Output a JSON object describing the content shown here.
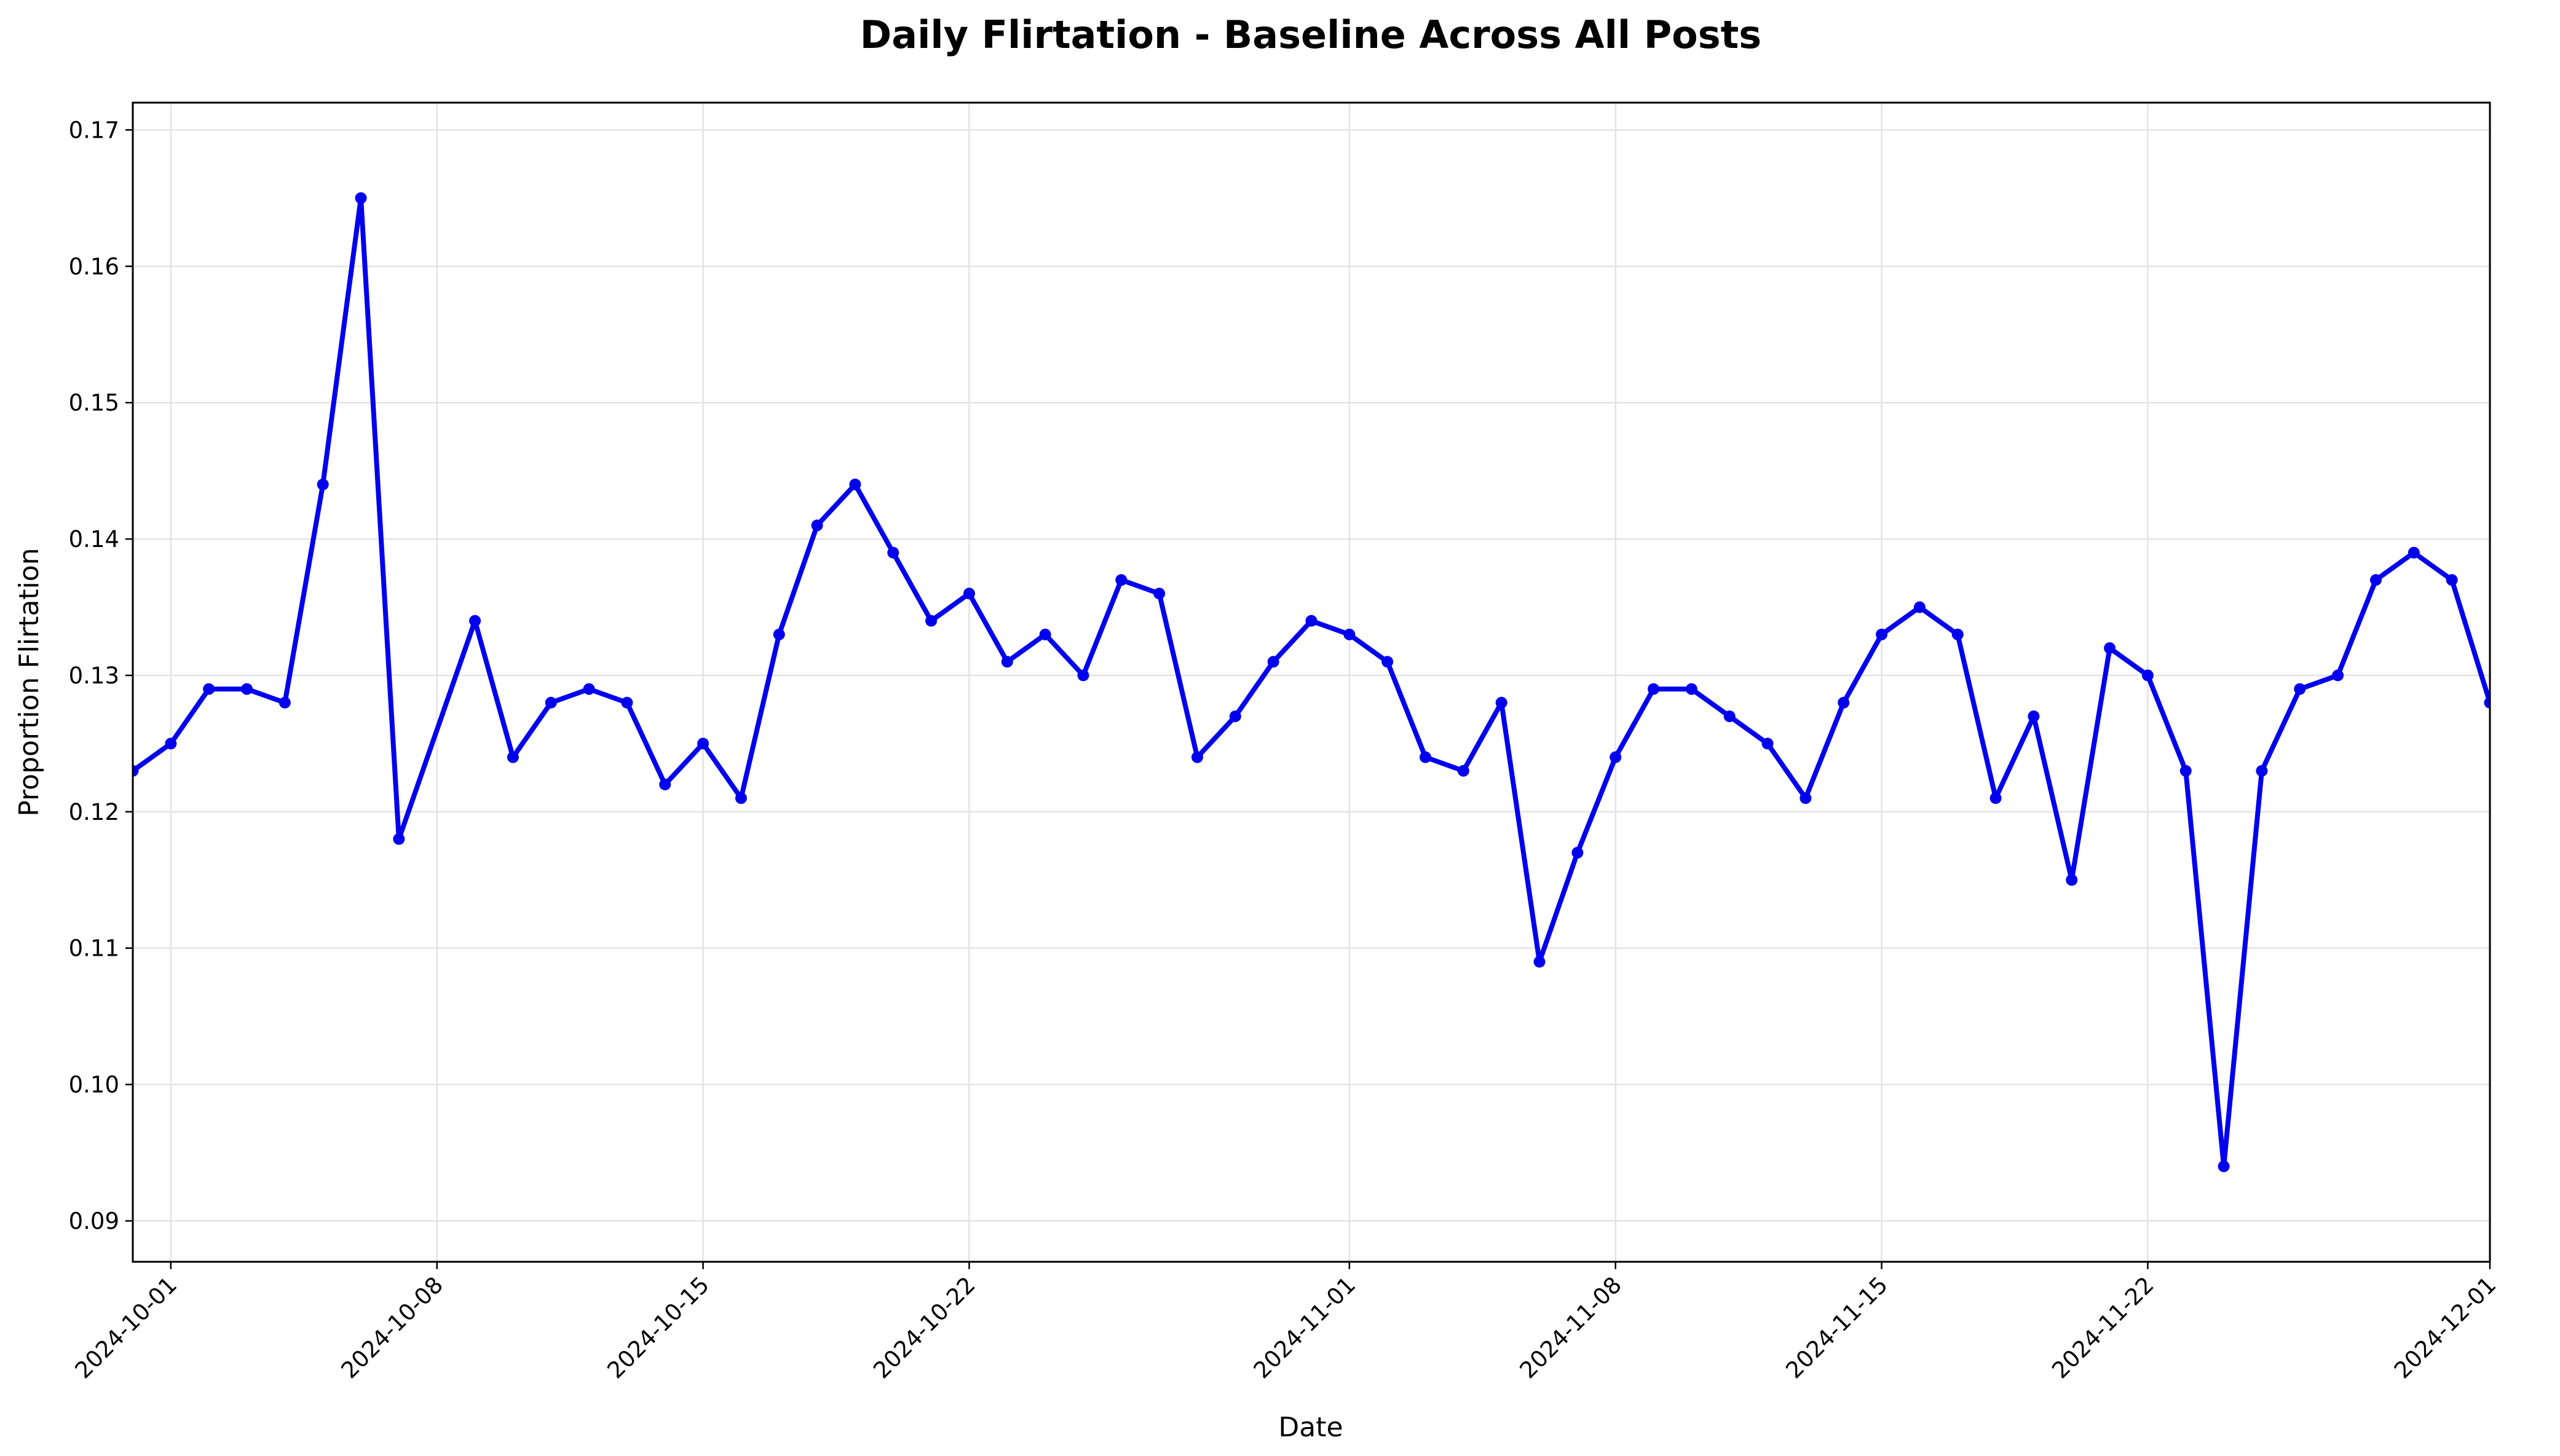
{
  "chart_data": {
    "type": "line",
    "title": "Daily Flirtation - Baseline Across All Posts",
    "xlabel": "Date",
    "ylabel": "Proportion Flirtation",
    "xlim": [
      "2024-09-30",
      "2024-12-01"
    ],
    "ylim": [
      0.087,
      0.172
    ],
    "x_ticks": [
      "2024-10-01",
      "2024-10-08",
      "2024-10-15",
      "2024-10-22",
      "2024-11-01",
      "2024-11-08",
      "2024-11-15",
      "2024-11-22",
      "2024-12-01"
    ],
    "y_ticks": [
      "0.09",
      "0.10",
      "0.11",
      "0.12",
      "0.13",
      "0.14",
      "0.15",
      "0.16",
      "0.17"
    ],
    "grid": true,
    "color": "#0000ee",
    "series": [
      {
        "points": [
          [
            "2024-09-30",
            0.123
          ],
          [
            "2024-10-01",
            0.125
          ],
          [
            "2024-10-02",
            0.129
          ],
          [
            "2024-10-03",
            0.129
          ],
          [
            "2024-10-04",
            0.128
          ],
          [
            "2024-10-05",
            0.144
          ],
          [
            "2024-10-06",
            0.165
          ],
          [
            "2024-10-07",
            0.118
          ],
          [
            "2024-10-09",
            0.134
          ],
          [
            "2024-10-10",
            0.124
          ],
          [
            "2024-10-11",
            0.128
          ],
          [
            "2024-10-12",
            0.129
          ],
          [
            "2024-10-13",
            0.128
          ],
          [
            "2024-10-14",
            0.122
          ],
          [
            "2024-10-15",
            0.125
          ],
          [
            "2024-10-16",
            0.121
          ],
          [
            "2024-10-17",
            0.133
          ],
          [
            "2024-10-18",
            0.141
          ],
          [
            "2024-10-19",
            0.144
          ],
          [
            "2024-10-20",
            0.139
          ],
          [
            "2024-10-21",
            0.134
          ],
          [
            "2024-10-22",
            0.136
          ],
          [
            "2024-10-23",
            0.131
          ],
          [
            "2024-10-24",
            0.133
          ],
          [
            "2024-10-25",
            0.13
          ],
          [
            "2024-10-26",
            0.137
          ],
          [
            "2024-10-27",
            0.136
          ],
          [
            "2024-10-28",
            0.124
          ],
          [
            "2024-10-29",
            0.127
          ],
          [
            "2024-10-30",
            0.131
          ],
          [
            "2024-10-31",
            0.134
          ],
          [
            "2024-11-01",
            0.133
          ],
          [
            "2024-11-02",
            0.131
          ],
          [
            "2024-11-03",
            0.124
          ],
          [
            "2024-11-04",
            0.123
          ],
          [
            "2024-11-05",
            0.128
          ],
          [
            "2024-11-06",
            0.109
          ],
          [
            "2024-11-07",
            0.117
          ],
          [
            "2024-11-08",
            0.124
          ],
          [
            "2024-11-09",
            0.129
          ],
          [
            "2024-11-10",
            0.129
          ],
          [
            "2024-11-11",
            0.127
          ],
          [
            "2024-11-12",
            0.125
          ],
          [
            "2024-11-13",
            0.121
          ],
          [
            "2024-11-14",
            0.128
          ],
          [
            "2024-11-15",
            0.133
          ],
          [
            "2024-11-16",
            0.135
          ],
          [
            "2024-11-17",
            0.133
          ],
          [
            "2024-11-18",
            0.121
          ],
          [
            "2024-11-19",
            0.127
          ],
          [
            "2024-11-20",
            0.115
          ],
          [
            "2024-11-21",
            0.132
          ],
          [
            "2024-11-22",
            0.13
          ],
          [
            "2024-11-23",
            0.123
          ],
          [
            "2024-11-24",
            0.094
          ],
          [
            "2024-11-25",
            0.123
          ],
          [
            "2024-11-26",
            0.129
          ],
          [
            "2024-11-27",
            0.13
          ],
          [
            "2024-11-28",
            0.137
          ],
          [
            "2024-11-29",
            0.139
          ],
          [
            "2024-11-30",
            0.137
          ],
          [
            "2024-12-01",
            0.128
          ]
        ]
      }
    ]
  }
}
